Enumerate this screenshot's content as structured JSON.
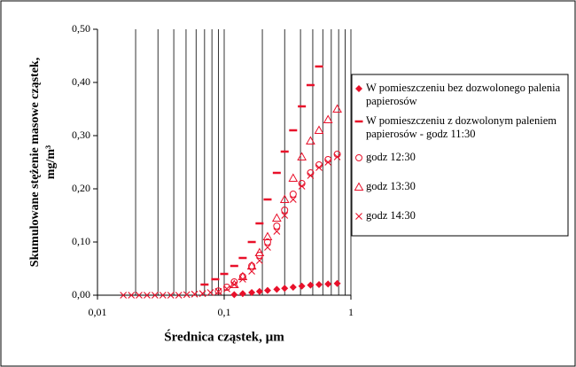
{
  "chart_data": {
    "type": "scatter",
    "xlabel": "Średnica cząstek, µm",
    "ylabel": [
      "Skumulowane stężenie masowe cząstek,",
      "mg/m³"
    ],
    "xscale": "log",
    "xlim": [
      0.01,
      1
    ],
    "xticks": [
      {
        "value": 0.01,
        "label": "0,01"
      },
      {
        "value": 0.1,
        "label": "0,1"
      },
      1
    ],
    "ylim": [
      0,
      0.5
    ],
    "yticks": [
      {
        "value": 0,
        "label": "0,00"
      },
      {
        "value": 0.1,
        "label": "0,10"
      },
      {
        "value": 0.2,
        "label": "0,20"
      },
      {
        "value": 0.3,
        "label": "0,30"
      },
      {
        "value": 0.4,
        "label": "0,40"
      },
      {
        "value": 0.5,
        "label": "0,50"
      }
    ],
    "grid": "x",
    "legend": "right",
    "series": [
      {
        "name": "W pomieszczeniu bez dozwolonego palenia papierosów",
        "marker": "diamond",
        "color": "#e8102a",
        "x": [
          0.12,
          0.14,
          0.165,
          0.19,
          0.22,
          0.26,
          0.3,
          0.35,
          0.41,
          0.48,
          0.56,
          0.66,
          0.78
        ],
        "values": [
          0.001,
          0.003,
          0.005,
          0.007,
          0.009,
          0.011,
          0.013,
          0.015,
          0.017,
          0.019,
          0.02,
          0.021,
          0.022
        ]
      },
      {
        "name": "W pomieszczeniu z dozwolonym paleniem papierosów - godz 11:30",
        "marker": "dash",
        "color": "#e8102a",
        "x": [
          0.07,
          0.085,
          0.1,
          0.12,
          0.14,
          0.165,
          0.19,
          0.22,
          0.26,
          0.3,
          0.35,
          0.41,
          0.48,
          0.56
        ],
        "values": [
          0.02,
          0.03,
          0.04,
          0.055,
          0.07,
          0.1,
          0.135,
          0.18,
          0.23,
          0.27,
          0.31,
          0.355,
          0.395,
          0.43
        ]
      },
      {
        "name": "godz 12:30",
        "marker": "circle",
        "color": "#e8102a",
        "x": [
          0.09,
          0.105,
          0.12,
          0.14,
          0.165,
          0.19,
          0.22,
          0.26,
          0.3,
          0.35,
          0.41,
          0.48,
          0.56,
          0.66,
          0.78
        ],
        "values": [
          0.008,
          0.015,
          0.025,
          0.035,
          0.055,
          0.075,
          0.1,
          0.13,
          0.16,
          0.19,
          0.21,
          0.23,
          0.245,
          0.255,
          0.265
        ]
      },
      {
        "name": "godz 13:30",
        "marker": "triangle",
        "color": "#e8102a",
        "x": [
          0.12,
          0.14,
          0.165,
          0.19,
          0.22,
          0.26,
          0.3,
          0.35,
          0.41,
          0.48,
          0.56,
          0.66,
          0.78
        ],
        "values": [
          0.02,
          0.035,
          0.055,
          0.08,
          0.11,
          0.145,
          0.18,
          0.22,
          0.26,
          0.29,
          0.31,
          0.33,
          0.35
        ]
      },
      {
        "name": "godz 14:30",
        "marker": "cross",
        "color": "#e8102a",
        "x": [
          0.016,
          0.0185,
          0.0213,
          0.0246,
          0.0284,
          0.0328,
          0.0379,
          0.0438,
          0.0506,
          0.0584,
          0.0675,
          0.0779,
          0.09,
          0.105,
          0.12,
          0.14,
          0.165,
          0.19,
          0.22,
          0.26,
          0.3,
          0.35,
          0.41,
          0.48,
          0.56,
          0.66,
          0.78
        ],
        "values": [
          0,
          0,
          0,
          0,
          0,
          0,
          0,
          0,
          0.001,
          0.002,
          0.003,
          0.005,
          0.007,
          0.012,
          0.02,
          0.03,
          0.045,
          0.065,
          0.09,
          0.12,
          0.15,
          0.18,
          0.205,
          0.225,
          0.24,
          0.25,
          0.26
        ]
      }
    ]
  }
}
